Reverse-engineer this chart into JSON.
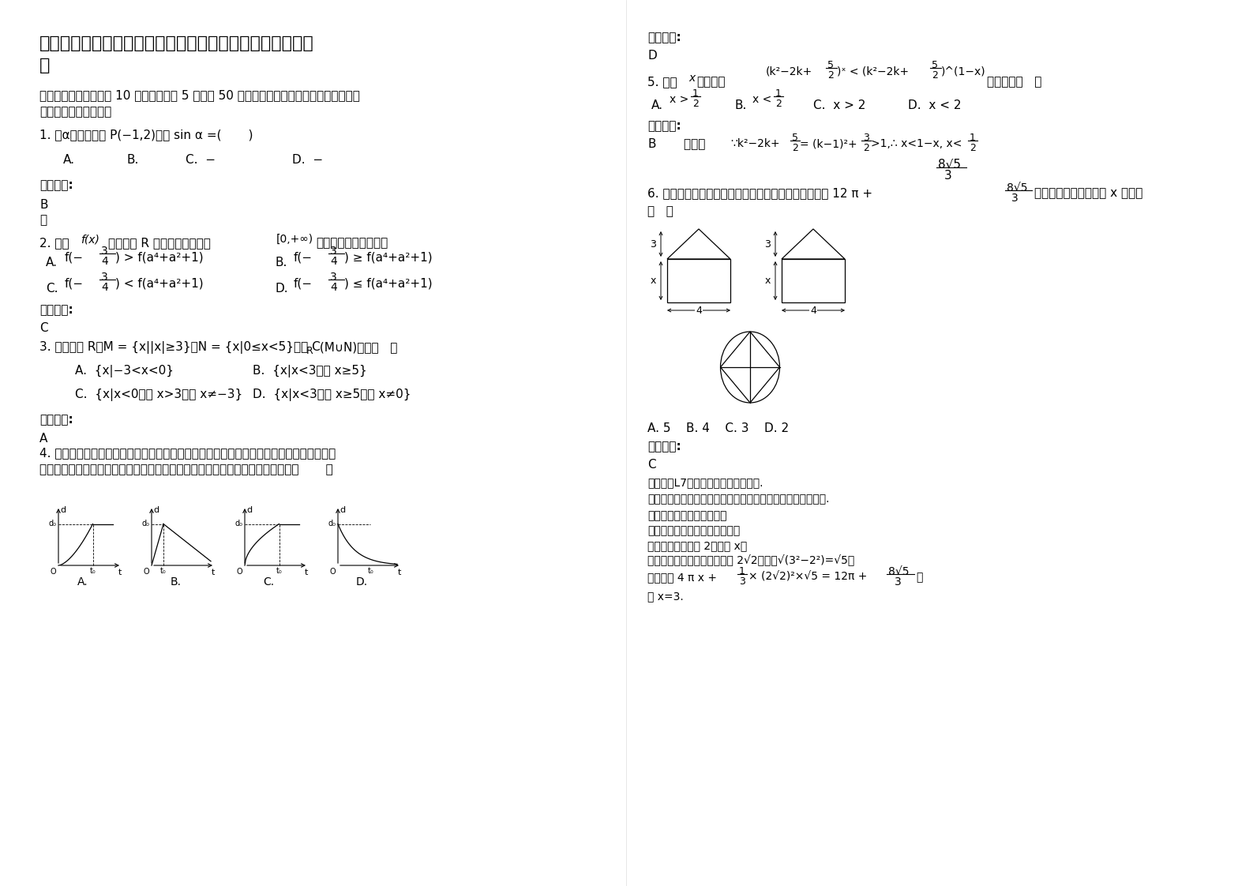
{
  "background_color": "#ffffff",
  "title_line1": "浙江省杭州市临安职业高中高一数学文下学期期末试题含解",
  "title_line2": "析",
  "section1": "一、选择题：本大题共 10 小题，每小题 5 分，共 50 分。在每小题给出的四个选项中，只有",
  "section1b": "是一个符合题目要求的",
  "q1": "1. 角α的终边过点 P(−1,2)，则 sin α =(       )",
  "q1_a": "A.",
  "q1_b": "B.",
  "q1_c": "C.  −",
  "q1_d": "D.  −",
  "ans_label": "参考答案:",
  "q1_ans": "B",
  "q1_hint": "略",
  "q2_pre": "2. 已知",
  "q2_fx": "f(x)",
  "q2_mid": "是定义在 R 上的偶函数，且在",
  "q2_interval": "[0,+∞)",
  "q2_post": "上是增函数，则一定有",
  "q2_optA": "A.",
  "q2_fA": "f(−",
  "q2_frac3_num": "3",
  "q2_frac3_den": "4",
  "q2_gA": ") > f(a⁴+a²+1)",
  "q2_optB": "B.",
  "q2_gB": ") ≥ f(a⁴+a²+1)",
  "q2_optC": "C.",
  "q2_gC": ") < f(a⁴+a²+1)",
  "q2_optD": "D.",
  "q2_gD": ") ≤ f(a⁴+a²+1)",
  "q2_ans": "C",
  "q3": "3. 设全集为 R，M = {x||x|≥3}，N = {x|0≤x<5}，则 C",
  "q3_sub": "R",
  "q3_post": " (M∪N)等于（   ）",
  "q3_A": "A.  {x|−3<x<0}",
  "q3_B": "B.  {x|x<3，或 x≥5}",
  "q3_C": "C.  {x|x<0，或 x>3，且 x≠−3}",
  "q3_D": "D.  {x|x<3，或 x≥5，且 x≠0}",
  "q3_ans": "A",
  "q4_line1": "4. 某学生从家里去学校上学，骑自行车一段时间，因自行车爆胎，后来推车步行，下图中横",
  "q4_line2": "轴表示出发后的时间，纵轴表示该生离学校的距离，则较符合该学生走法的图是（       ）",
  "right_ans_label": "参考答案:",
  "right_ans_D": "D",
  "q5_pre": "5. 关于",
  "q5_x": "x",
  "q5_post": "的不等式",
  "q5_formula": "(k²−2k+",
  "q5_5": "5",
  "q5_2": "2",
  "q5_mid": ")ˣ < (k²−2k+",
  "q5_5b": "5",
  "q5_2b": "2",
  "q5_end": ")^(1−x)",
  "q5_ans_end": "的解集是（   ）",
  "q5_A": "A.",
  "q5_xA": "x > ",
  "q5_B": "B.",
  "q5_xB": "x < ",
  "q5_C": "C.  x > 2",
  "q5_D": "D.  x < 2",
  "q5_ans": "参考答案:",
  "q5_ans_val": "B",
  "q5_jiex": "    解析：",
  "q5_expl": "∵k²−2k+",
  "q5_expl2": "= (k−1)²+",
  "q5_expl3": ">1,∴ x<1−x, x<",
  "q6_line1": "6. 一空间几何体的三视图如图所示，该几何体的体积为 12 π +",
  "q6_then": "，则正视图与侧视图中 x 的值为",
  "q6_paren": "（   ）",
  "q6_opts": "A. 5    B. 4    C. 3    D. 2",
  "q6_ans": "参考答案:",
  "q6_ans_val": "C",
  "exp1": "【考点】L7：简单空间图形的三视图.",
  "exp2": "【分析】由三视图知该空间几何体为圆柱及四棱锥，从而解得.",
  "exp3": "【解答】解：由三视图知，",
  "exp4": "该空间几何体为圆柱及四棱锥，",
  "exp5": "且圆柱底面半径为 2，高为 x，",
  "exp6": "四棱锥底面为正方形，边长为 2√2，高为√(3²−2²)=√5，",
  "exp7": "故体积为 4 π x +",
  "exp7b": "× (2√2)²×√5 = 12π +",
  "exp7c": "，",
  "exp8": "故 x=3."
}
